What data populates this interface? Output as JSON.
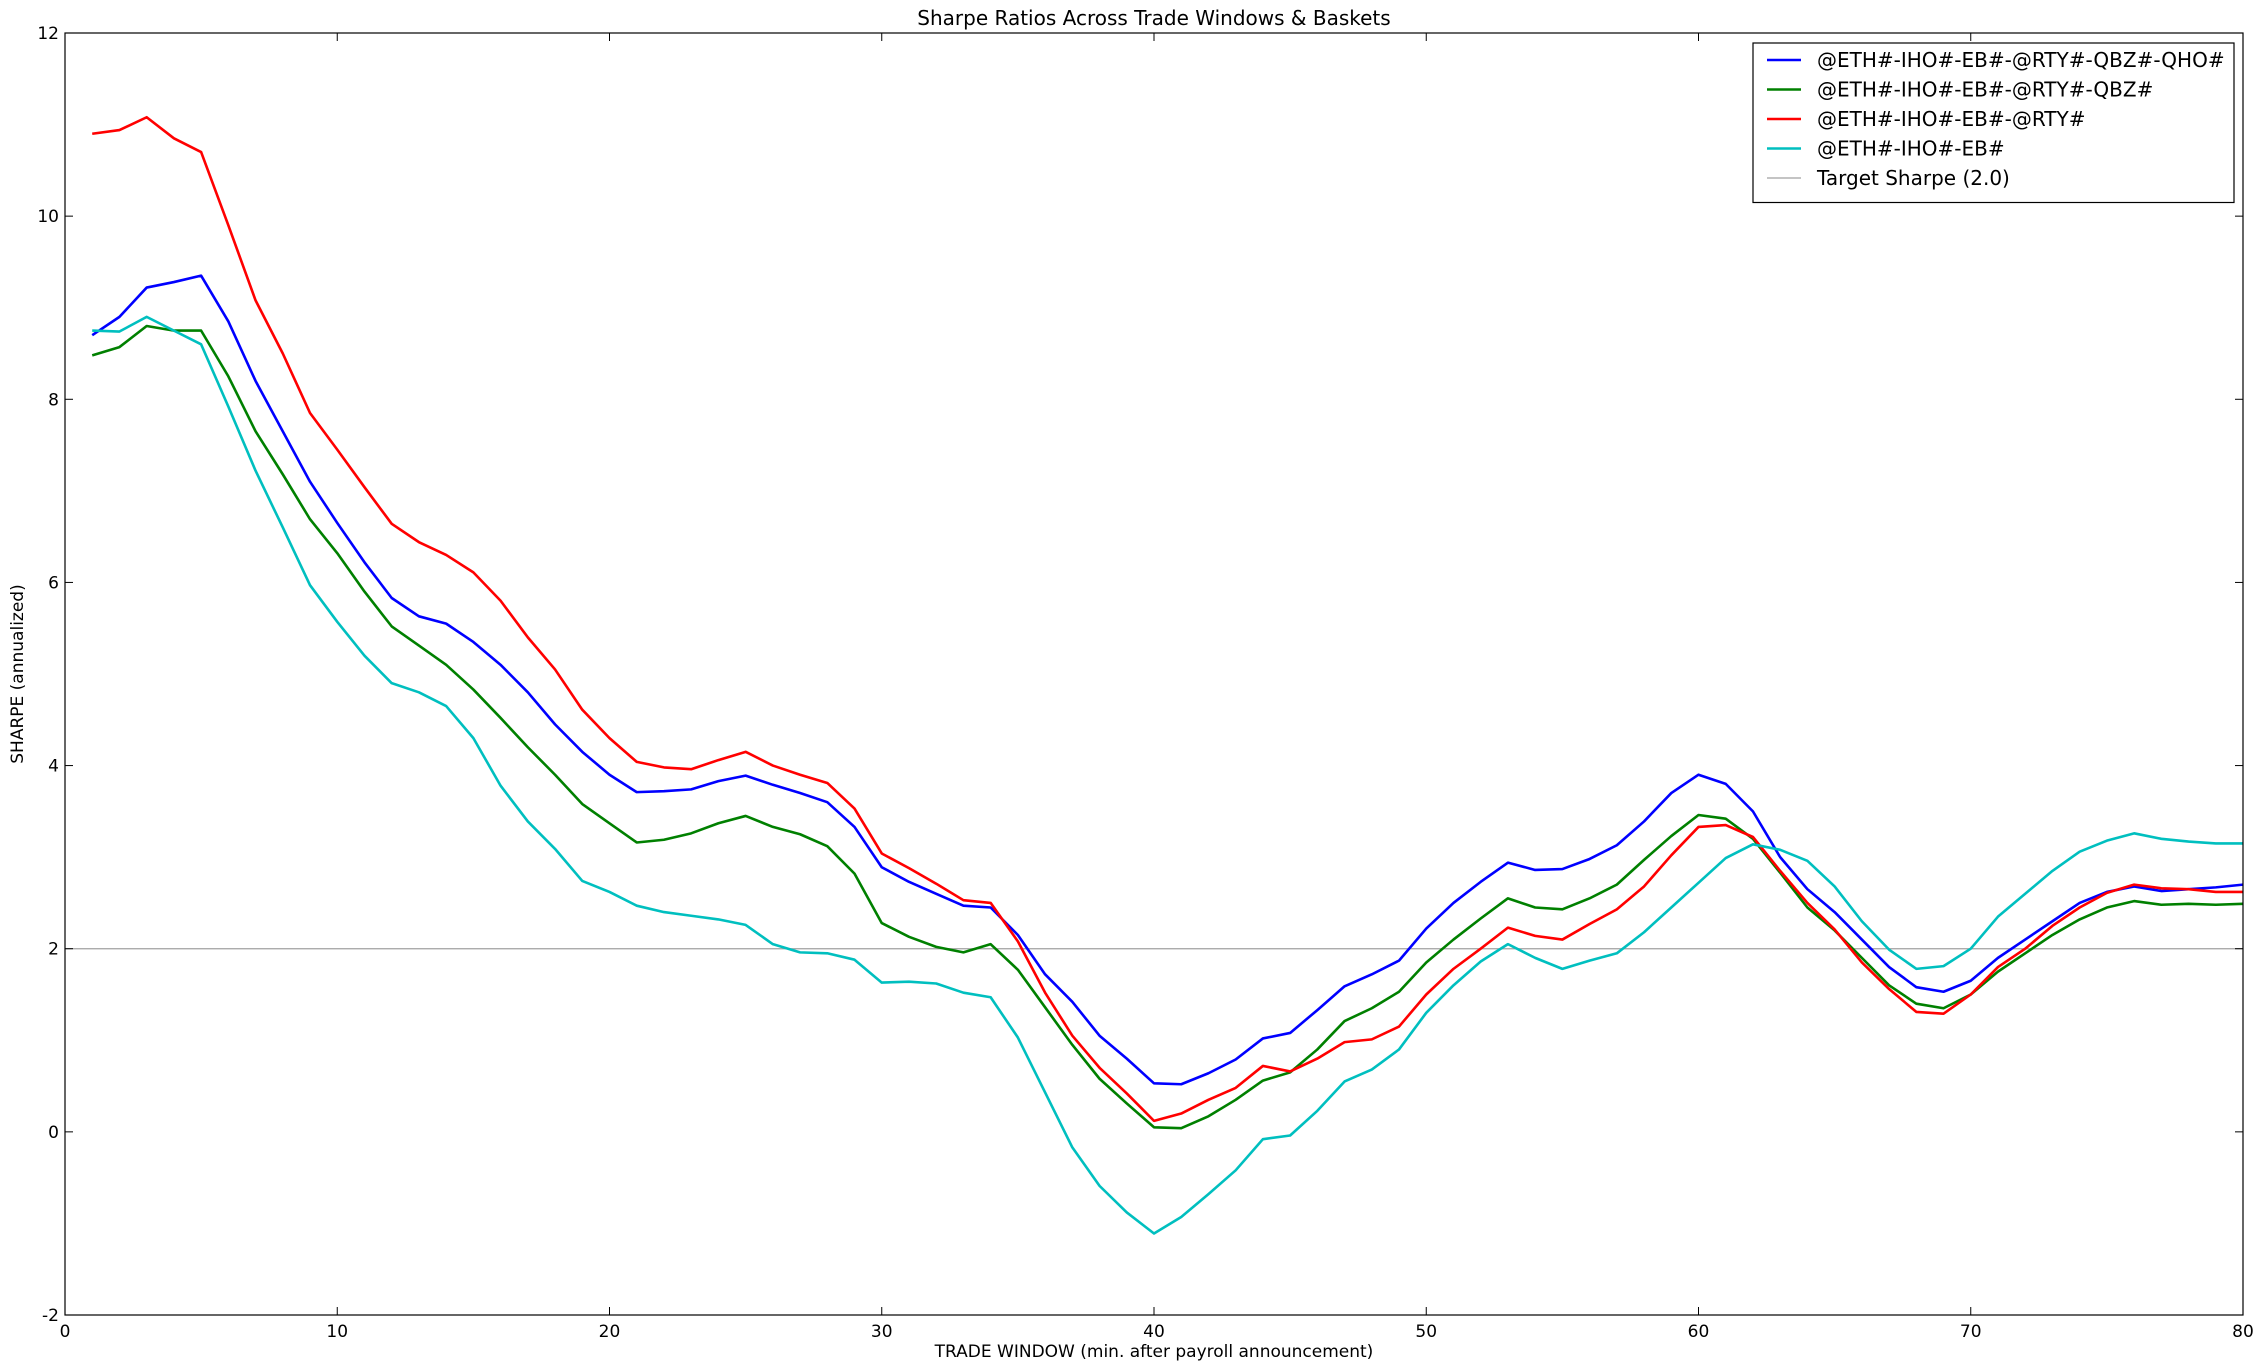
{
  "chart_data": {
    "type": "line",
    "title": "Sharpe Ratios Across Trade Windows & Baskets",
    "xlabel": "TRADE WINDOW (min. after payroll announcement)",
    "ylabel": "SHARPE (annualized)",
    "xlim": [
      0,
      80
    ],
    "ylim": [
      -2,
      12
    ],
    "xticks": [
      0,
      10,
      20,
      30,
      40,
      50,
      60,
      70,
      80
    ],
    "yticks": [
      -2,
      0,
      2,
      4,
      6,
      8,
      10,
      12
    ],
    "grid": false,
    "legend_position": "top-right",
    "x": [
      1,
      2,
      3,
      4,
      5,
      6,
      7,
      8,
      9,
      10,
      11,
      12,
      13,
      14,
      15,
      16,
      17,
      18,
      19,
      20,
      21,
      22,
      23,
      24,
      25,
      26,
      27,
      28,
      29,
      30,
      31,
      32,
      33,
      34,
      35,
      36,
      37,
      38,
      39,
      40,
      41,
      42,
      43,
      44,
      45,
      46,
      47,
      48,
      49,
      50,
      51,
      52,
      53,
      54,
      55,
      56,
      57,
      58,
      59,
      60,
      61,
      62,
      63,
      64,
      65,
      66,
      67,
      68,
      69,
      70,
      71,
      72,
      73,
      74,
      75,
      76,
      77,
      78,
      79,
      80
    ],
    "series": [
      {
        "name": "@ETH#-IHO#-EB#-@RTY#-QBZ#-QHO#",
        "color": "#0000ff",
        "values": [
          8.7,
          8.9,
          9.22,
          9.28,
          9.35,
          8.85,
          8.2,
          7.65,
          7.1,
          6.65,
          6.22,
          5.83,
          5.63,
          5.55,
          5.35,
          5.1,
          4.8,
          4.45,
          4.15,
          3.9,
          3.71,
          3.72,
          3.74,
          3.83,
          3.89,
          3.79,
          3.7,
          3.6,
          3.33,
          2.89,
          2.73,
          2.6,
          2.47,
          2.45,
          2.15,
          1.72,
          1.42,
          1.05,
          0.8,
          0.53,
          0.52,
          0.64,
          0.79,
          1.02,
          1.08,
          1.33,
          1.59,
          1.72,
          1.87,
          2.22,
          2.5,
          2.73,
          2.94,
          2.86,
          2.87,
          2.98,
          3.13,
          3.39,
          3.7,
          3.9,
          3.8,
          3.5,
          3.0,
          2.65,
          2.4,
          2.1,
          1.8,
          1.58,
          1.53,
          1.65,
          1.9,
          2.1,
          2.3,
          2.5,
          2.62,
          2.68,
          2.63,
          2.65,
          2.67,
          2.7
        ]
      },
      {
        "name": "@ETH#-IHO#-EB#-@RTY#-QBZ#",
        "color": "#008000",
        "values": [
          8.48,
          8.57,
          8.8,
          8.75,
          8.75,
          8.25,
          7.65,
          7.18,
          6.69,
          6.32,
          5.9,
          5.52,
          5.31,
          5.1,
          4.83,
          4.52,
          4.2,
          3.9,
          3.58,
          3.37,
          3.16,
          3.19,
          3.26,
          3.37,
          3.45,
          3.33,
          3.25,
          3.12,
          2.82,
          2.28,
          2.13,
          2.02,
          1.96,
          2.05,
          1.77,
          1.36,
          0.95,
          0.58,
          0.31,
          0.05,
          0.04,
          0.17,
          0.35,
          0.56,
          0.65,
          0.9,
          1.21,
          1.35,
          1.53,
          1.85,
          2.1,
          2.33,
          2.55,
          2.45,
          2.43,
          2.55,
          2.7,
          2.97,
          3.23,
          3.46,
          3.42,
          3.2,
          2.83,
          2.45,
          2.2,
          1.9,
          1.6,
          1.4,
          1.35,
          1.5,
          1.75,
          1.95,
          2.15,
          2.32,
          2.45,
          2.52,
          2.48,
          2.49,
          2.48,
          2.49
        ]
      },
      {
        "name": "@ETH#-IHO#-EB#-@RTY#",
        "color": "#ff0000",
        "values": [
          10.9,
          10.94,
          11.08,
          10.85,
          10.7,
          9.9,
          9.08,
          8.5,
          7.85,
          7.45,
          7.04,
          6.64,
          6.44,
          6.3,
          6.11,
          5.8,
          5.4,
          5.05,
          4.61,
          4.3,
          4.04,
          3.98,
          3.96,
          4.06,
          4.15,
          4.0,
          3.9,
          3.81,
          3.53,
          3.04,
          2.88,
          2.71,
          2.53,
          2.5,
          2.08,
          1.52,
          1.05,
          0.7,
          0.42,
          0.12,
          0.2,
          0.35,
          0.48,
          0.72,
          0.66,
          0.8,
          0.98,
          1.01,
          1.15,
          1.5,
          1.78,
          2.0,
          2.23,
          2.14,
          2.1,
          2.27,
          2.43,
          2.68,
          3.02,
          3.33,
          3.35,
          3.22,
          2.85,
          2.5,
          2.21,
          1.85,
          1.56,
          1.31,
          1.29,
          1.5,
          1.8,
          2.0,
          2.25,
          2.45,
          2.61,
          2.7,
          2.66,
          2.65,
          2.62,
          2.62
        ]
      },
      {
        "name": "@ETH#-IHO#-EB#",
        "color": "#00bfbf",
        "values": [
          8.75,
          8.74,
          8.9,
          8.75,
          8.6,
          7.92,
          7.22,
          6.6,
          5.97,
          5.57,
          5.2,
          4.9,
          4.8,
          4.65,
          4.3,
          3.78,
          3.39,
          3.09,
          2.74,
          2.62,
          2.47,
          2.4,
          2.36,
          2.32,
          2.26,
          2.05,
          1.96,
          1.95,
          1.88,
          1.63,
          1.64,
          1.62,
          1.52,
          1.47,
          1.03,
          0.43,
          -0.17,
          -0.59,
          -0.88,
          -1.11,
          -0.93,
          -0.68,
          -0.42,
          -0.08,
          -0.04,
          0.23,
          0.55,
          0.68,
          0.9,
          1.3,
          1.6,
          1.86,
          2.05,
          1.9,
          1.78,
          1.87,
          1.95,
          2.18,
          2.45,
          2.72,
          2.99,
          3.14,
          3.08,
          2.96,
          2.68,
          2.3,
          1.99,
          1.78,
          1.81,
          2.0,
          2.35,
          2.6,
          2.85,
          3.06,
          3.18,
          3.26,
          3.2,
          3.17,
          3.15,
          3.15
        ]
      }
    ],
    "reference_line": {
      "name": "Target Sharpe (2.0)",
      "y": 2.0,
      "color": "#a0a0a0"
    }
  }
}
